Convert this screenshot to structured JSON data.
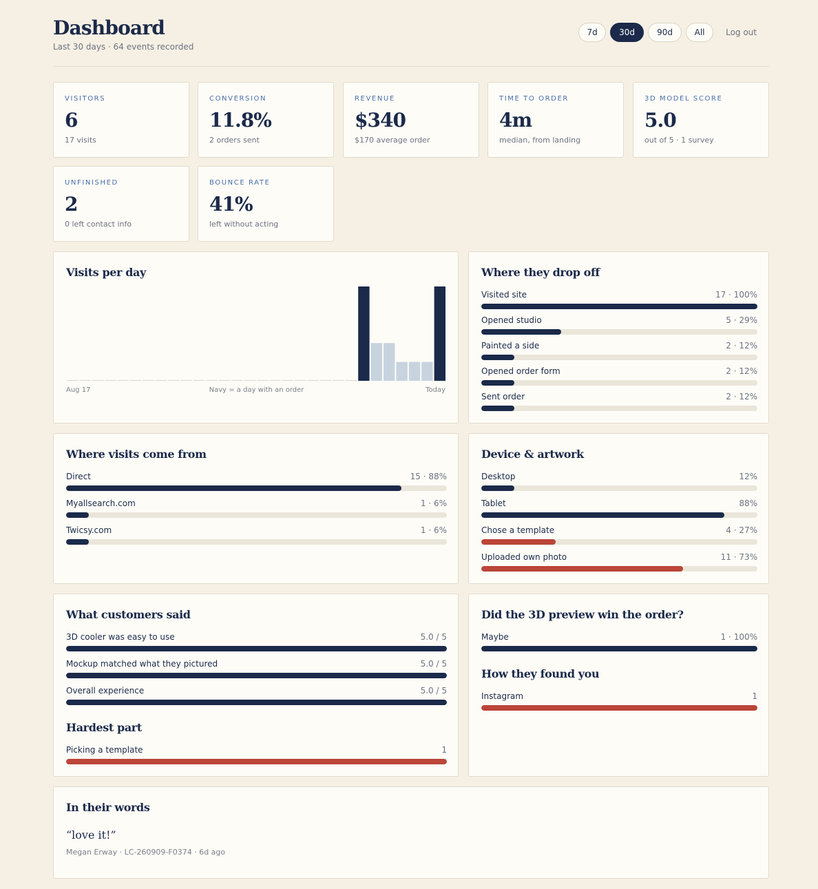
{
  "header": {
    "title": "Dashboard",
    "subtitle": "Last 30 days · 64 events recorded",
    "ranges": [
      "7d",
      "30d",
      "90d",
      "All"
    ],
    "active_range": "30d",
    "logout": "Log out"
  },
  "kpis": [
    {
      "label": "VISITORS",
      "value": "6",
      "sub": "17 visits"
    },
    {
      "label": "CONVERSION",
      "value": "11.8%",
      "sub": "2 orders sent"
    },
    {
      "label": "REVENUE",
      "value": "$340",
      "sub": "$170 average order"
    },
    {
      "label": "TIME TO ORDER",
      "value": "4m",
      "sub": "median, from landing"
    },
    {
      "label": "3D MODEL SCORE",
      "value": "5.0",
      "sub": "out of 5 · 1 survey"
    },
    {
      "label": "UNFINISHED",
      "value": "2",
      "sub": "0 left contact info"
    },
    {
      "label": "BOUNCE RATE",
      "value": "41%",
      "sub": "left without acting"
    }
  ],
  "visits_chart": {
    "title": "Visits per day",
    "start_label": "Aug 17",
    "legend": "Navy = a day with an order",
    "end_label": "Today",
    "colors": {
      "order": "#1b2a4a",
      "no_order": "#c8d3e0",
      "empty": "#d9d6cc"
    }
  },
  "chart_data": {
    "type": "bar",
    "title": "Visits per day",
    "xlabel": "",
    "ylabel": "",
    "x_range": [
      "Aug 17",
      "Today"
    ],
    "values": [
      0,
      0,
      0,
      0,
      0,
      0,
      0,
      0,
      0,
      0,
      0,
      0,
      0,
      0,
      0,
      0,
      0,
      0,
      0,
      0,
      0,
      0,
      0,
      5,
      2,
      2,
      1,
      1,
      1,
      5
    ],
    "order_days": [
      false,
      false,
      false,
      false,
      false,
      false,
      false,
      false,
      false,
      false,
      false,
      false,
      false,
      false,
      false,
      false,
      false,
      false,
      false,
      false,
      false,
      false,
      false,
      true,
      false,
      false,
      false,
      false,
      false,
      true
    ],
    "ylim": [
      0,
      5
    ],
    "grid": false
  },
  "dropoff": {
    "title": "Where they drop off",
    "rows": [
      {
        "label": "Visited site",
        "value": "17 · 100%",
        "pct": 100,
        "color": "navy"
      },
      {
        "label": "Opened studio",
        "value": "5 · 29%",
        "pct": 29,
        "color": "navy"
      },
      {
        "label": "Painted a side",
        "value": "2 · 12%",
        "pct": 12,
        "color": "navy"
      },
      {
        "label": "Opened order form",
        "value": "2 · 12%",
        "pct": 12,
        "color": "navy"
      },
      {
        "label": "Sent order",
        "value": "2 · 12%",
        "pct": 12,
        "color": "navy"
      }
    ]
  },
  "sources": {
    "title": "Where visits come from",
    "rows": [
      {
        "label": "Direct",
        "value": "15 · 88%",
        "pct": 88,
        "color": "navy"
      },
      {
        "label": "Myallsearch.com",
        "value": "1 · 6%",
        "pct": 6,
        "color": "navy"
      },
      {
        "label": "Twicsy.com",
        "value": "1 · 6%",
        "pct": 6,
        "color": "navy"
      }
    ]
  },
  "device": {
    "title": "Device & artwork",
    "rows": [
      {
        "label": "Desktop",
        "value": "12%",
        "pct": 12,
        "color": "navy"
      },
      {
        "label": "Tablet",
        "value": "88%",
        "pct": 88,
        "color": "navy"
      },
      {
        "label": "Chose a template",
        "value": "4 · 27%",
        "pct": 27,
        "color": "red"
      },
      {
        "label": "Uploaded own photo",
        "value": "11 · 73%",
        "pct": 73,
        "color": "red"
      }
    ]
  },
  "said": {
    "title": "What customers said",
    "rows": [
      {
        "label": "3D cooler was easy to use",
        "value": "5.0 / 5",
        "pct": 100,
        "color": "navy"
      },
      {
        "label": "Mockup matched what they pictured",
        "value": "5.0 / 5",
        "pct": 100,
        "color": "navy"
      },
      {
        "label": "Overall experience",
        "value": "5.0 / 5",
        "pct": 100,
        "color": "navy"
      }
    ]
  },
  "hardest": {
    "title": "Hardest part",
    "rows": [
      {
        "label": "Picking a template",
        "value": "1",
        "pct": 100,
        "color": "red"
      }
    ]
  },
  "preview": {
    "title": "Did the 3D preview win the order?",
    "rows": [
      {
        "label": "Maybe",
        "value": "1 · 100%",
        "pct": 100,
        "color": "navy"
      }
    ]
  },
  "found": {
    "title": "How they found you",
    "rows": [
      {
        "label": "Instagram",
        "value": "1",
        "pct": 100,
        "color": "red"
      }
    ]
  },
  "words": {
    "title": "In their words",
    "quote": "“love it!”",
    "meta": "Megan Erway · LC-260909-F0374 · 6d ago"
  },
  "colors": {
    "navy": "#1b2a4a",
    "red": "#bb4538",
    "track": "#ebe6da",
    "accent_label": "#4a6ea8",
    "background": "#f6f0e4"
  }
}
